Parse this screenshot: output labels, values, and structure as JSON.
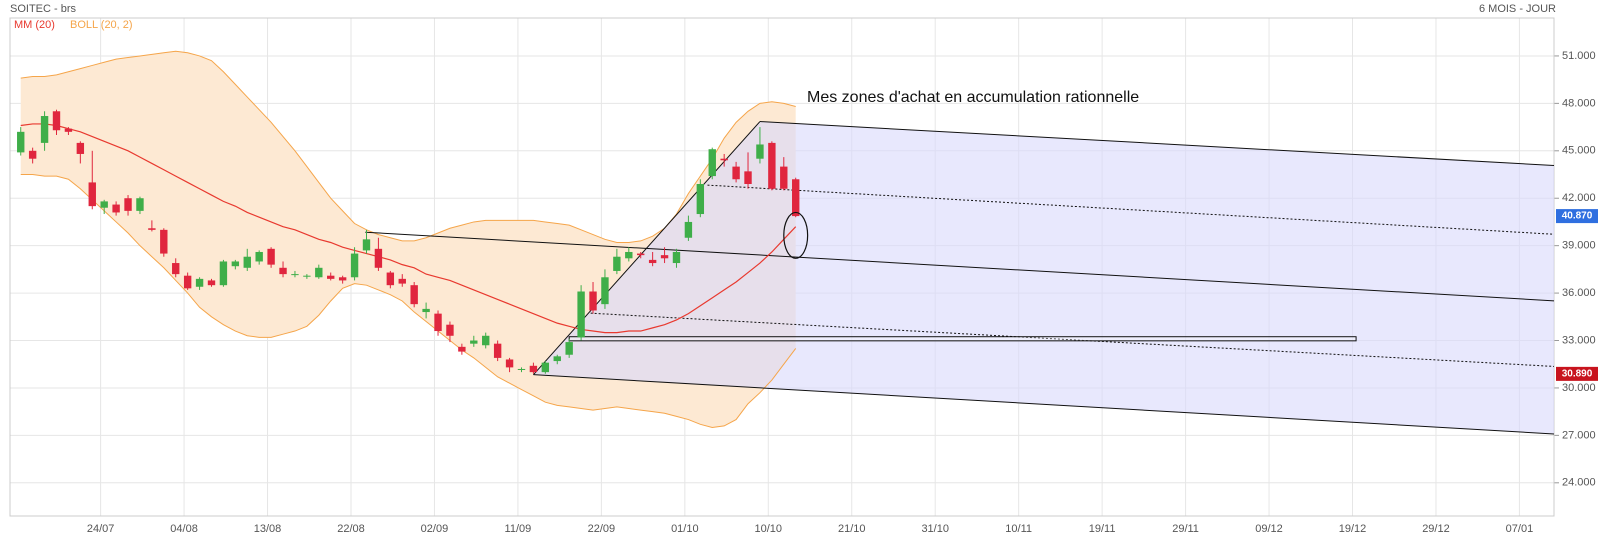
{
  "chart_data": {
    "type": "candlestick",
    "title": "SOITEC - brs",
    "period": "6 MOIS - JOUR",
    "x": [
      0,
      1,
      2,
      3,
      4,
      5,
      6,
      7,
      8,
      9,
      10,
      11,
      12,
      13,
      14,
      15,
      16,
      17,
      18,
      19,
      20,
      21,
      22,
      23,
      24,
      25,
      26,
      27,
      28,
      29,
      30,
      31,
      32,
      33,
      34,
      35,
      36,
      37,
      38,
      39,
      40,
      41,
      42,
      43,
      44,
      45,
      46,
      47,
      48,
      49,
      50,
      51,
      52,
      53,
      54,
      55,
      56,
      57,
      58,
      59,
      60,
      61,
      62,
      63,
      64,
      65
    ],
    "open": [
      44.9,
      45.0,
      45.5,
      47.5,
      46.4,
      45.5,
      43.0,
      41.4,
      41.6,
      42.0,
      41.2,
      40.1,
      40.0,
      37.9,
      37.1,
      36.4,
      36.8,
      36.5,
      37.7,
      37.6,
      38.0,
      38.8,
      37.6,
      37.2,
      37.1,
      37.0,
      37.1,
      37.0,
      37.0,
      38.7,
      38.8,
      37.3,
      36.9,
      36.5,
      34.8,
      34.7,
      34.0,
      32.6,
      32.8,
      32.7,
      32.8,
      31.8,
      31.2,
      31.4,
      31.0,
      31.7,
      32.1,
      33.2,
      36.1,
      35.3,
      37.4,
      38.2,
      38.5,
      38.1,
      38.4,
      37.9,
      39.5,
      41.0,
      43.4,
      44.5,
      44.0,
      43.7,
      44.5,
      45.5,
      44.0,
      43.2
    ],
    "high": [
      46.5,
      45.2,
      47.5,
      47.6,
      46.5,
      45.6,
      45.0,
      41.9,
      41.8,
      42.2,
      42.1,
      40.6,
      40.1,
      38.2,
      37.3,
      37.0,
      36.9,
      38.1,
      38.1,
      38.8,
      38.7,
      38.9,
      38.0,
      37.4,
      37.2,
      37.8,
      37.3,
      37.1,
      38.9,
      40.0,
      39.5,
      37.4,
      37.2,
      36.7,
      35.4,
      34.9,
      34.2,
      32.8,
      33.3,
      33.5,
      33.0,
      31.9,
      31.3,
      31.6,
      31.7,
      32.1,
      33.1,
      36.5,
      36.7,
      37.5,
      38.8,
      38.9,
      38.6,
      38.6,
      38.9,
      38.8,
      40.9,
      43.2,
      45.2,
      44.8,
      44.3,
      44.9,
      46.5,
      45.6,
      44.6,
      43.3
    ],
    "low": [
      44.7,
      44.2,
      45.0,
      46.0,
      46.0,
      44.2,
      41.3,
      41.0,
      40.9,
      40.9,
      41.0,
      39.9,
      38.3,
      37.0,
      36.2,
      36.2,
      36.4,
      36.4,
      37.5,
      37.4,
      37.8,
      37.6,
      37.0,
      37.0,
      36.9,
      36.9,
      36.8,
      36.6,
      36.8,
      38.5,
      37.4,
      36.3,
      36.4,
      35.1,
      34.4,
      33.3,
      32.9,
      32.1,
      32.6,
      32.5,
      31.7,
      31.0,
      31.0,
      30.9,
      30.9,
      31.5,
      31.9,
      33.0,
      34.7,
      35.0,
      37.2,
      38.0,
      38.2,
      37.7,
      37.9,
      37.6,
      39.3,
      40.8,
      43.2,
      44.0,
      43.0,
      42.6,
      44.2,
      42.5,
      42.5,
      40.8
    ],
    "close": [
      46.2,
      44.5,
      47.2,
      46.3,
      46.2,
      44.8,
      41.5,
      41.8,
      41.1,
      41.2,
      42.0,
      40.0,
      38.5,
      37.2,
      36.3,
      36.9,
      36.5,
      38.0,
      38.0,
      38.3,
      38.6,
      37.8,
      37.2,
      37.2,
      37.1,
      37.6,
      36.9,
      36.8,
      38.5,
      39.4,
      37.6,
      36.5,
      36.6,
      35.3,
      35.0,
      33.6,
      33.3,
      32.3,
      33.0,
      33.3,
      31.9,
      31.3,
      31.2,
      31.0,
      31.6,
      32.0,
      32.9,
      36.1,
      34.9,
      37.0,
      38.3,
      38.6,
      38.4,
      37.9,
      38.2,
      38.6,
      40.5,
      42.9,
      45.1,
      44.4,
      43.2,
      42.9,
      45.4,
      42.6,
      42.6,
      40.87
    ],
    "up_color": "#3fae49",
    "down_color": "#e0263e",
    "overlays": [
      {
        "name": "MM (20)",
        "color": "#e8392f",
        "values": [
          46.6,
          46.7,
          46.7,
          46.6,
          46.4,
          46.2,
          45.9,
          45.6,
          45.3,
          45.0,
          44.6,
          44.2,
          43.8,
          43.4,
          43.0,
          42.6,
          42.2,
          41.8,
          41.5,
          41.1,
          40.8,
          40.5,
          40.2,
          40.0,
          39.7,
          39.4,
          39.2,
          38.9,
          38.7,
          38.5,
          38.3,
          38.1,
          37.8,
          37.6,
          37.2,
          37.0,
          36.8,
          36.5,
          36.2,
          35.9,
          35.6,
          35.3,
          35.0,
          34.7,
          34.4,
          34.1,
          33.9,
          33.7,
          33.6,
          33.5,
          33.5,
          33.6,
          33.6,
          33.8,
          34.0,
          34.3,
          34.7,
          35.2,
          35.7,
          36.2,
          36.7,
          37.3,
          37.9,
          38.6,
          39.4,
          40.2
        ]
      }
    ],
    "bands": {
      "name": "BOLL (20, 2)",
      "color": "#f5a54a",
      "fill": "#fde9d3",
      "upper": [
        49.6,
        49.7,
        49.7,
        49.8,
        50.0,
        50.2,
        50.4,
        50.6,
        50.8,
        50.9,
        51.0,
        51.1,
        51.2,
        51.3,
        51.2,
        51.0,
        50.7,
        50.0,
        49.2,
        48.4,
        47.6,
        46.8,
        45.9,
        45.0,
        44.0,
        43.0,
        42.0,
        41.2,
        40.4,
        40.0,
        39.7,
        39.5,
        39.3,
        39.3,
        39.5,
        39.8,
        40.1,
        40.3,
        40.5,
        40.6,
        40.6,
        40.6,
        40.6,
        40.6,
        40.5,
        40.4,
        40.3,
        40.0,
        39.7,
        39.4,
        39.2,
        39.2,
        39.3,
        39.6,
        40.1,
        41.0,
        42.3,
        43.4,
        44.5,
        45.8,
        46.8,
        47.5,
        48.0,
        48.1,
        48.0,
        47.8
      ],
      "lower": [
        43.5,
        43.5,
        43.4,
        43.4,
        43.2,
        42.6,
        41.9,
        41.2,
        40.5,
        39.8,
        39.0,
        38.3,
        37.6,
        36.8,
        36.0,
        35.1,
        34.5,
        34.0,
        33.6,
        33.3,
        33.2,
        33.2,
        33.4,
        33.6,
        33.9,
        34.6,
        35.5,
        36.3,
        36.6,
        36.5,
        36.2,
        35.9,
        35.5,
        34.8,
        34.2,
        33.6,
        33.0,
        32.4,
        31.9,
        31.3,
        30.7,
        30.3,
        29.9,
        29.5,
        29.1,
        28.9,
        28.8,
        28.7,
        28.6,
        28.7,
        28.8,
        28.7,
        28.6,
        28.5,
        28.4,
        28.2,
        28.0,
        27.7,
        27.5,
        27.6,
        28.0,
        29.0,
        29.7,
        30.5,
        31.5,
        32.5
      ]
    },
    "xlim": [
      -0.9,
      128.6
    ],
    "xticks": [
      {
        "value": 6.7,
        "label": "24/07"
      },
      {
        "value": 13.7,
        "label": "04/08"
      },
      {
        "value": 20.7,
        "label": "13/08"
      },
      {
        "value": 27.7,
        "label": "22/08"
      },
      {
        "value": 34.7,
        "label": "02/09"
      },
      {
        "value": 41.7,
        "label": "11/09"
      },
      {
        "value": 48.7,
        "label": "22/09"
      },
      {
        "value": 55.7,
        "label": "01/10"
      },
      {
        "value": 62.7,
        "label": "10/10"
      },
      {
        "value": 69.7,
        "label": "21/10"
      },
      {
        "value": 76.7,
        "label": "31/10"
      },
      {
        "value": 83.7,
        "label": "10/11"
      },
      {
        "value": 90.7,
        "label": "19/11"
      },
      {
        "value": 97.7,
        "label": "29/11"
      },
      {
        "value": 104.7,
        "label": "09/12"
      },
      {
        "value": 111.7,
        "label": "19/12"
      },
      {
        "value": 118.7,
        "label": "29/12"
      },
      {
        "value": 125.7,
        "label": "07/01"
      }
    ],
    "ylim": [
      21.9,
      53.4
    ],
    "yticks": [
      {
        "value": 24,
        "label": "24.000"
      },
      {
        "value": 27,
        "label": "27.000"
      },
      {
        "value": 30,
        "label": "30.000"
      },
      {
        "value": 33,
        "label": "33.000"
      },
      {
        "value": 36,
        "label": "36.000"
      },
      {
        "value": 39,
        "label": "39.000"
      },
      {
        "value": 42,
        "label": "42.000"
      },
      {
        "value": 45,
        "label": "45.000"
      },
      {
        "value": 48,
        "label": "48.000"
      },
      {
        "value": 51,
        "label": "51.000"
      }
    ],
    "grid": true,
    "price_labels": [
      {
        "value": 40.87,
        "label": "40.870",
        "color": "#2f6fe0"
      },
      {
        "value": 30.89,
        "label": "30.890",
        "color": "#c8141e"
      }
    ],
    "drawings": {
      "note": "Mes zones d'achat en accumulation rationnelle",
      "channel_fill": "#d8d8fb",
      "channel": {
        "x": [
          43.0,
          62.0,
          128.6,
          128.6
        ],
        "y": [
          30.84,
          46.85,
          44.07,
          27.09
        ]
      },
      "lines": [
        {
          "x": [
            43.0,
            62.0
          ],
          "y": [
            30.84,
            46.85
          ],
          "dashed": false
        },
        {
          "x": [
            62.0,
            128.6
          ],
          "y": [
            46.85,
            44.07
          ],
          "dashed": false
        },
        {
          "x": [
            57.6,
            128.6
          ],
          "y": [
            42.83,
            39.72
          ],
          "dashed": true
        },
        {
          "x": [
            28.9,
            128.6
          ],
          "y": [
            39.85,
            35.51
          ],
          "dashed": false
        },
        {
          "x": [
            47.8,
            128.6
          ],
          "y": [
            34.73,
            31.36
          ],
          "dashed": true
        },
        {
          "x": [
            43.0,
            128.6
          ],
          "y": [
            30.84,
            27.09
          ],
          "dashed": false
        }
      ],
      "box": {
        "x": [
          46.0,
          112.0
        ],
        "y": [
          32.98,
          33.24
        ]
      },
      "ellipse": {
        "x": [
          64.0,
          66.0
        ],
        "y": [
          38.2,
          41.1
        ]
      }
    }
  }
}
